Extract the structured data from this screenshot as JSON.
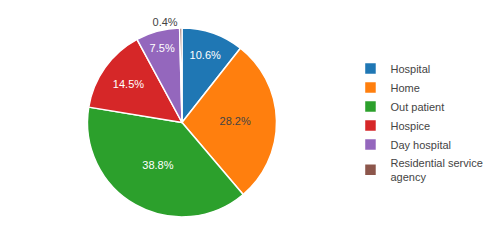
{
  "chart_data": {
    "type": "pie",
    "categories": [
      "Hospital",
      "Home",
      "Out patient",
      "Hospice",
      "Day hospital",
      "Residential service\nagency"
    ],
    "values": [
      10.6,
      28.2,
      38.8,
      14.5,
      7.5,
      0.4
    ],
    "value_labels": [
      "10.6%",
      "28.2%",
      "38.8%",
      "14.5%",
      "7.5%",
      "0.4%"
    ],
    "data_labels": true,
    "legend": "right"
  }
}
